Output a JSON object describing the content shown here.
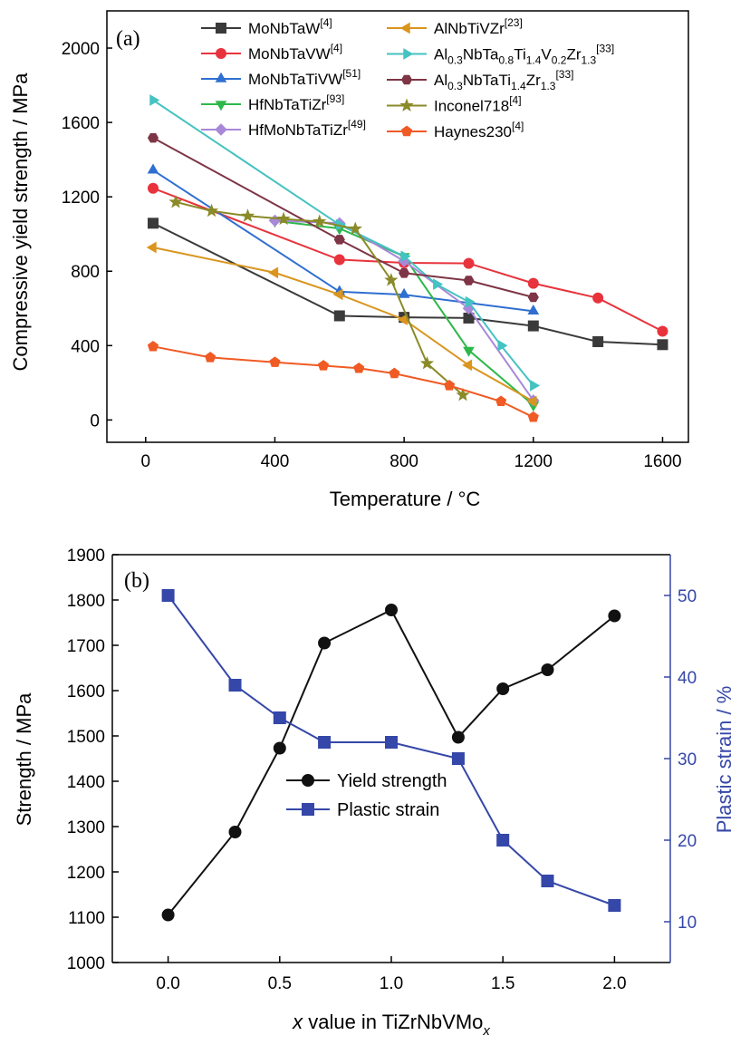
{
  "chart_data": [
    {
      "type": "line",
      "panel_label": "(a)",
      "xlabel": "Temperature / °C",
      "ylabel": "Compressive yield strength / MPa",
      "xlim": [
        -120,
        1680
      ],
      "ylim": [
        -120,
        2200
      ],
      "xticks": [
        "0",
        "400",
        "800",
        "1200",
        "1600"
      ],
      "yticks": [
        "0",
        "400",
        "800",
        "1200",
        "1600",
        "2000"
      ],
      "legend_placement": "top, two columns",
      "series": [
        {
          "id": "s0",
          "name": "MoNbTaW",
          "ref": "[4]",
          "color": "#3a3a3a",
          "marker": "square",
          "x": [
            23,
            600,
            800,
            1000,
            1200,
            1400,
            1600
          ],
          "y": [
            1058,
            560,
            552,
            548,
            506,
            421,
            405
          ]
        },
        {
          "id": "s1",
          "name": "MoNbTaVW",
          "ref": "[4]",
          "color": "#e8333c",
          "marker": "circle",
          "x": [
            23,
            600,
            800,
            1000,
            1200,
            1400,
            1600
          ],
          "y": [
            1246,
            862,
            845,
            842,
            735,
            656,
            477
          ]
        },
        {
          "id": "s2",
          "name": "MoNbTaTiVW",
          "ref": "[51]",
          "color": "#2f6fd0",
          "marker": "triangle-up",
          "x": [
            23,
            600,
            800,
            1200
          ],
          "y": [
            1343,
            690,
            674,
            585
          ]
        },
        {
          "id": "s3",
          "name": "HfNbTaTiZr",
          "ref": "[93]",
          "color": "#2eb84a",
          "marker": "triangle-down",
          "x": [
            400,
            600,
            800,
            1000,
            1200
          ],
          "y": [
            1070,
            1030,
            880,
            375,
            80
          ]
        },
        {
          "id": "s4",
          "name": "HfMoNbTaTiZr",
          "ref": "[49]",
          "color": "#a888d8",
          "marker": "diamond",
          "x": [
            400,
            600,
            800,
            1000,
            1200
          ],
          "y": [
            1072,
            1058,
            855,
            600,
            105
          ]
        },
        {
          "id": "s5",
          "name": "AlNbTiVZr",
          "ref": "[23]",
          "color": "#d9951e",
          "marker": "triangle-left",
          "x": [
            23,
            400,
            600,
            800,
            1000,
            1200
          ],
          "y": [
            928,
            792,
            675,
            540,
            295,
            100
          ]
        },
        {
          "id": "s6",
          "name": "Al0.3NbTa0.8Ti1.4V0.2Zr1.3",
          "ref": "[33]",
          "color": "#45c2c2",
          "marker": "triangle-right",
          "x": [
            23,
            600,
            800,
            900,
            1000,
            1100,
            1200
          ],
          "y": [
            1720,
            1050,
            880,
            730,
            635,
            400,
            185
          ]
        },
        {
          "id": "s7",
          "name": "Al0.3NbTaTi1.4Zr1.3",
          "ref": "[33]",
          "color": "#7e3545",
          "marker": "hexagon",
          "x": [
            23,
            600,
            800,
            1000,
            1200
          ],
          "y": [
            1517,
            970,
            790,
            750,
            660
          ]
        },
        {
          "id": "s8",
          "name": "Inconel718",
          "ref": "[4]",
          "color": "#8a8a28",
          "marker": "star",
          "x": [
            93,
            204,
            316,
            427,
            538,
            649,
            760,
            871,
            982
          ],
          "y": [
            1172,
            1124,
            1097,
            1081,
            1067,
            1028,
            752,
            304,
            134
          ]
        },
        {
          "id": "s9",
          "name": "Haynes230",
          "ref": "[4]",
          "color": "#f05a24",
          "marker": "pentagon",
          "x": [
            23,
            200,
            400,
            550,
            660,
            770,
            940,
            1100,
            1200
          ],
          "y": [
            395,
            336,
            310,
            292,
            278,
            250,
            185,
            100,
            15
          ]
        }
      ]
    },
    {
      "type": "line",
      "panel_label": "(b)",
      "xlabel_italic": "x",
      "xlabel_mid": " value in TiZrNbVMo",
      "xlabel_sub": "x",
      "ylabel_left": "Strength / MPa",
      "ylabel_right": "Plastic strain / %",
      "xlim": [
        -0.25,
        2.25
      ],
      "ylim_left": [
        1000,
        1900
      ],
      "ylim_right": [
        5,
        55
      ],
      "xticks": [
        "0.0",
        "0.5",
        "1.0",
        "1.5",
        "2.0"
      ],
      "yticks_left": [
        "1000",
        "1100",
        "1200",
        "1300",
        "1400",
        "1500",
        "1600",
        "1700",
        "1800",
        "1900"
      ],
      "yticks_right": [
        "10",
        "20",
        "30",
        "40",
        "50"
      ],
      "legend_placement": "lower-center",
      "series": [
        {
          "id": "ys",
          "name": "Yield strength",
          "axis": "left",
          "color": "#111111",
          "marker": "circle",
          "x": [
            0.0,
            0.3,
            0.5,
            0.7,
            1.0,
            1.3,
            1.5,
            1.7,
            2.0
          ],
          "y": [
            1105,
            1288,
            1473,
            1705,
            1778,
            1497,
            1604,
            1646,
            1765
          ]
        },
        {
          "id": "ps",
          "name": "Plastic strain",
          "axis": "right",
          "color": "#3547a8",
          "marker": "square",
          "x": [
            0.0,
            0.3,
            0.5,
            0.7,
            1.0,
            1.3,
            1.5,
            1.7,
            2.0
          ],
          "y": [
            50,
            39,
            35,
            32,
            32,
            30,
            20,
            15,
            12
          ]
        }
      ]
    }
  ]
}
